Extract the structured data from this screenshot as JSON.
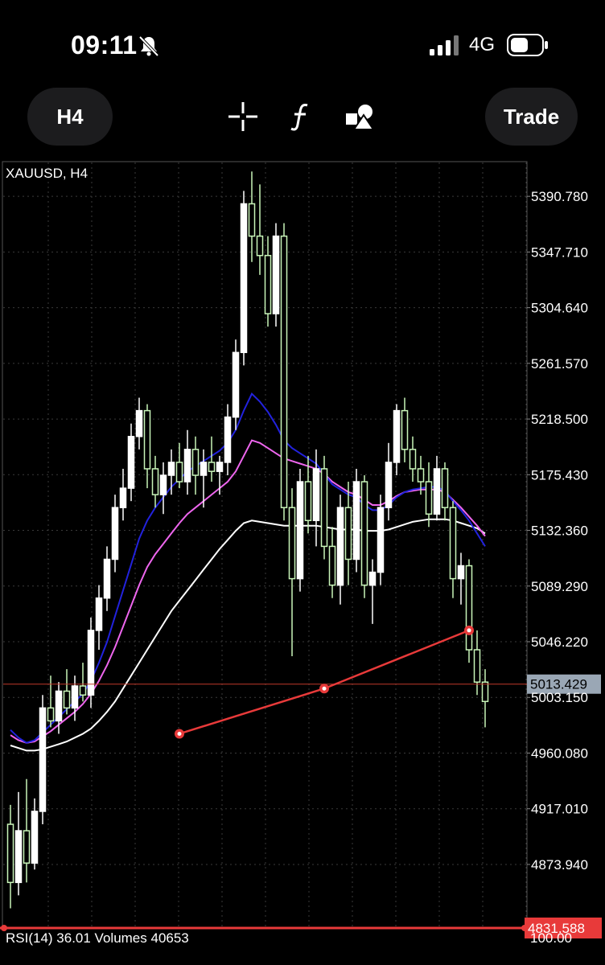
{
  "status_bar": {
    "time": "09:11",
    "network": "4G",
    "silent_icon": "bell-slash-icon",
    "signal_icon": "cellular-signal-icon",
    "battery_icon": "battery-icon"
  },
  "toolbar": {
    "timeframe_label": "H4",
    "crosshair_icon": "crosshair-icon",
    "indicators_icon": "function-icon",
    "objects_icon": "shapes-icon",
    "trade_label": "Trade"
  },
  "chart_data": {
    "type": "candlestick",
    "symbol_label": "XAUUSD, H4",
    "price_axis": {
      "ticks": [
        "5390.780",
        "5347.710",
        "5304.640",
        "5261.570",
        "5218.500",
        "5175.430",
        "5132.360",
        "5089.290",
        "5046.220",
        "5003.150",
        "4960.080",
        "4917.010",
        "4873.940"
      ],
      "ylim": [
        4826,
        5417
      ]
    },
    "current_price_label": "5013.429",
    "current_price": 5013.429,
    "alert_price_label": "4831.588",
    "alert_price": 4831.588,
    "rsi_label": "RSI(14) 36.01 Volumes 40653",
    "rsi_axis_label": "100.00",
    "colors": {
      "bull": "#ffffff",
      "bear": "#c9f5b9",
      "ma_fast": "#2222dd",
      "ma_mid": "#ee66ee",
      "ma_slow": "#ffffff",
      "trendline": "#e83a3a",
      "price_line": "#c0392b",
      "grid": "#3a3a3a"
    },
    "trendline": [
      {
        "bar": 21,
        "price": 4975
      },
      {
        "bar": 39,
        "price": 5010
      },
      {
        "bar": 57,
        "price": 5055
      }
    ],
    "ohlc": [
      [
        4905,
        4920,
        4840,
        4860
      ],
      [
        4860,
        4930,
        4850,
        4900
      ],
      [
        4900,
        4940,
        4860,
        4875
      ],
      [
        4875,
        4925,
        4870,
        4915
      ],
      [
        4915,
        5005,
        4905,
        4995
      ],
      [
        4995,
        5020,
        4980,
        4985
      ],
      [
        4985,
        5015,
        4975,
        5008
      ],
      [
        5008,
        5025,
        4990,
        4995
      ],
      [
        4995,
        5020,
        4985,
        5012
      ],
      [
        5012,
        5030,
        5000,
        5005
      ],
      [
        5005,
        5065,
        4995,
        5055
      ],
      [
        5055,
        5090,
        5040,
        5080
      ],
      [
        5080,
        5120,
        5070,
        5110
      ],
      [
        5110,
        5160,
        5100,
        5150
      ],
      [
        5150,
        5180,
        5140,
        5165
      ],
      [
        5165,
        5215,
        5155,
        5205
      ],
      [
        5205,
        5235,
        5195,
        5225
      ],
      [
        5225,
        5230,
        5165,
        5180
      ],
      [
        5180,
        5190,
        5150,
        5160
      ],
      [
        5160,
        5185,
        5145,
        5175
      ],
      [
        5175,
        5195,
        5160,
        5185
      ],
      [
        5185,
        5200,
        5165,
        5170
      ],
      [
        5170,
        5210,
        5160,
        5195
      ],
      [
        5195,
        5205,
        5160,
        5175
      ],
      [
        5175,
        5195,
        5150,
        5185
      ],
      [
        5185,
        5205,
        5170,
        5178
      ],
      [
        5178,
        5190,
        5160,
        5185
      ],
      [
        5185,
        5230,
        5175,
        5220
      ],
      [
        5220,
        5280,
        5210,
        5270
      ],
      [
        5270,
        5395,
        5260,
        5385
      ],
      [
        5385,
        5410,
        5340,
        5360
      ],
      [
        5360,
        5400,
        5330,
        5345
      ],
      [
        5345,
        5360,
        5290,
        5300
      ],
      [
        5300,
        5370,
        5290,
        5360
      ],
      [
        5360,
        5370,
        5140,
        5150
      ],
      [
        5150,
        5165,
        5035,
        5095
      ],
      [
        5095,
        5180,
        5085,
        5170
      ],
      [
        5170,
        5190,
        5130,
        5140
      ],
      [
        5140,
        5195,
        5120,
        5180
      ],
      [
        5180,
        5190,
        5110,
        5120
      ],
      [
        5120,
        5135,
        5080,
        5090
      ],
      [
        5090,
        5160,
        5075,
        5150
      ],
      [
        5150,
        5170,
        5090,
        5110
      ],
      [
        5110,
        5180,
        5100,
        5170
      ],
      [
        5170,
        5175,
        5080,
        5090
      ],
      [
        5090,
        5110,
        5060,
        5100
      ],
      [
        5100,
        5160,
        5090,
        5150
      ],
      [
        5150,
        5200,
        5140,
        5185
      ],
      [
        5185,
        5230,
        5175,
        5225
      ],
      [
        5225,
        5235,
        5185,
        5195
      ],
      [
        5195,
        5205,
        5170,
        5180
      ],
      [
        5180,
        5190,
        5160,
        5170
      ],
      [
        5170,
        5185,
        5135,
        5145
      ],
      [
        5145,
        5190,
        5140,
        5180
      ],
      [
        5180,
        5185,
        5140,
        5150
      ],
      [
        5150,
        5155,
        5080,
        5095
      ],
      [
        5095,
        5115,
        5075,
        5105
      ],
      [
        5105,
        5110,
        5030,
        5040
      ],
      [
        5040,
        5055,
        5005,
        5015
      ],
      [
        5015,
        5025,
        4980,
        5000
      ]
    ],
    "ma_fast": [
      4978,
      4972,
      4968,
      4970,
      4976,
      4982,
      4988,
      4994,
      5000,
      5006,
      5016,
      5030,
      5046,
      5066,
      5086,
      5106,
      5126,
      5140,
      5150,
      5158,
      5166,
      5172,
      5178,
      5182,
      5186,
      5190,
      5194,
      5200,
      5210,
      5225,
      5238,
      5232,
      5224,
      5214,
      5202,
      5196,
      5192,
      5188,
      5184,
      5176,
      5168,
      5164,
      5160,
      5158,
      5152,
      5148,
      5148,
      5152,
      5158,
      5162,
      5164,
      5165,
      5166,
      5166,
      5163,
      5155,
      5148,
      5140,
      5130,
      5120
    ],
    "ma_mid": [
      4974,
      4970,
      4968,
      4969,
      4973,
      4977,
      4982,
      4987,
      4992,
      4998,
      5006,
      5016,
      5028,
      5042,
      5058,
      5074,
      5090,
      5104,
      5114,
      5122,
      5130,
      5138,
      5145,
      5150,
      5155,
      5160,
      5165,
      5170,
      5178,
      5190,
      5202,
      5200,
      5196,
      5192,
      5188,
      5186,
      5184,
      5182,
      5180,
      5176,
      5170,
      5166,
      5162,
      5160,
      5156,
      5152,
      5152,
      5155,
      5159,
      5162,
      5163,
      5164,
      5164,
      5164,
      5162,
      5156,
      5150,
      5143,
      5136,
      5128
    ],
    "ma_slow": [
      4966,
      4964,
      4962,
      4962,
      4963,
      4965,
      4967,
      4969,
      4972,
      4975,
      4979,
      4985,
      4992,
      5000,
      5010,
      5020,
      5030,
      5040,
      5050,
      5060,
      5070,
      5078,
      5086,
      5094,
      5102,
      5110,
      5118,
      5125,
      5132,
      5138,
      5140,
      5139,
      5138,
      5137,
      5136,
      5136,
      5136,
      5136,
      5136,
      5135,
      5134,
      5133,
      5133,
      5133,
      5132,
      5132,
      5132,
      5133,
      5135,
      5137,
      5139,
      5140,
      5141,
      5141,
      5141,
      5140,
      5138,
      5136,
      5134,
      5130
    ]
  }
}
